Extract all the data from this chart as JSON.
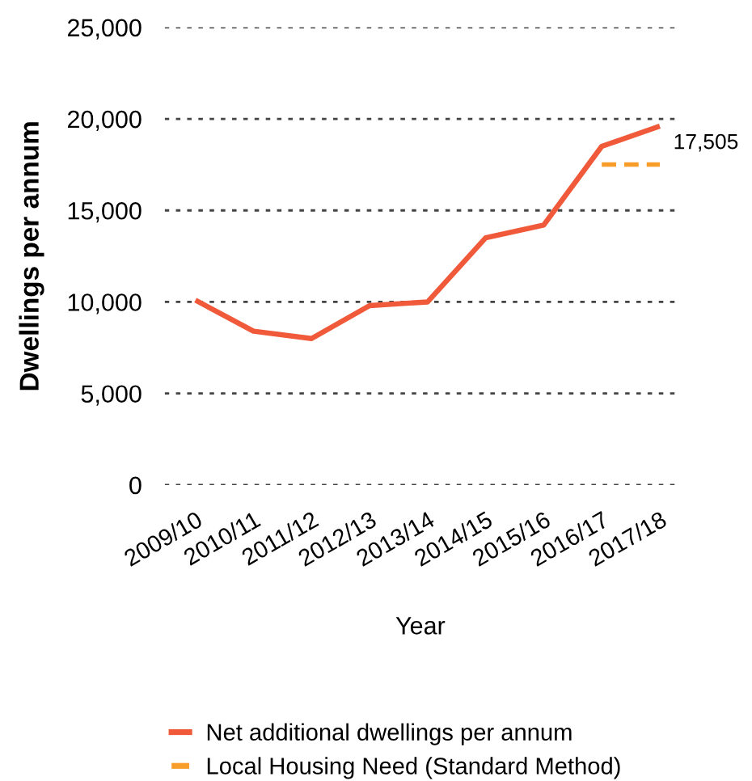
{
  "chart_data": {
    "type": "line",
    "xlabel": "Year",
    "ylabel": "Dwellings per annum",
    "categories": [
      "2009/10",
      "2010/11",
      "2011/12",
      "2012/13",
      "2013/14",
      "2014/15",
      "2015/16",
      "2016/17",
      "2017/18"
    ],
    "series": [
      {
        "name": "Net additional dwellings per annum",
        "color": "#f05a3a",
        "line_style": "solid",
        "values": [
          10100,
          8400,
          8000,
          9800,
          10000,
          13500,
          14200,
          18500,
          19600
        ]
      },
      {
        "name": "Local Housing Need (Standard Method)",
        "color": "#f89c2a",
        "line_style": "dashed",
        "values": [
          null,
          null,
          null,
          null,
          null,
          null,
          null,
          17505,
          17505
        ]
      }
    ],
    "ylim": [
      0,
      25000
    ],
    "yticks": [
      {
        "value": 0,
        "label": "0"
      },
      {
        "value": 5000,
        "label": "5,000"
      },
      {
        "value": 10000,
        "label": "10,000"
      },
      {
        "value": 15000,
        "label": "15,000"
      },
      {
        "value": 20000,
        "label": "20,000"
      },
      {
        "value": 25000,
        "label": "25,000"
      }
    ],
    "grid": "y",
    "legend": "bottom",
    "annotations": [
      {
        "text": "17,505",
        "x": "2017/18",
        "y": 17505
      }
    ]
  }
}
